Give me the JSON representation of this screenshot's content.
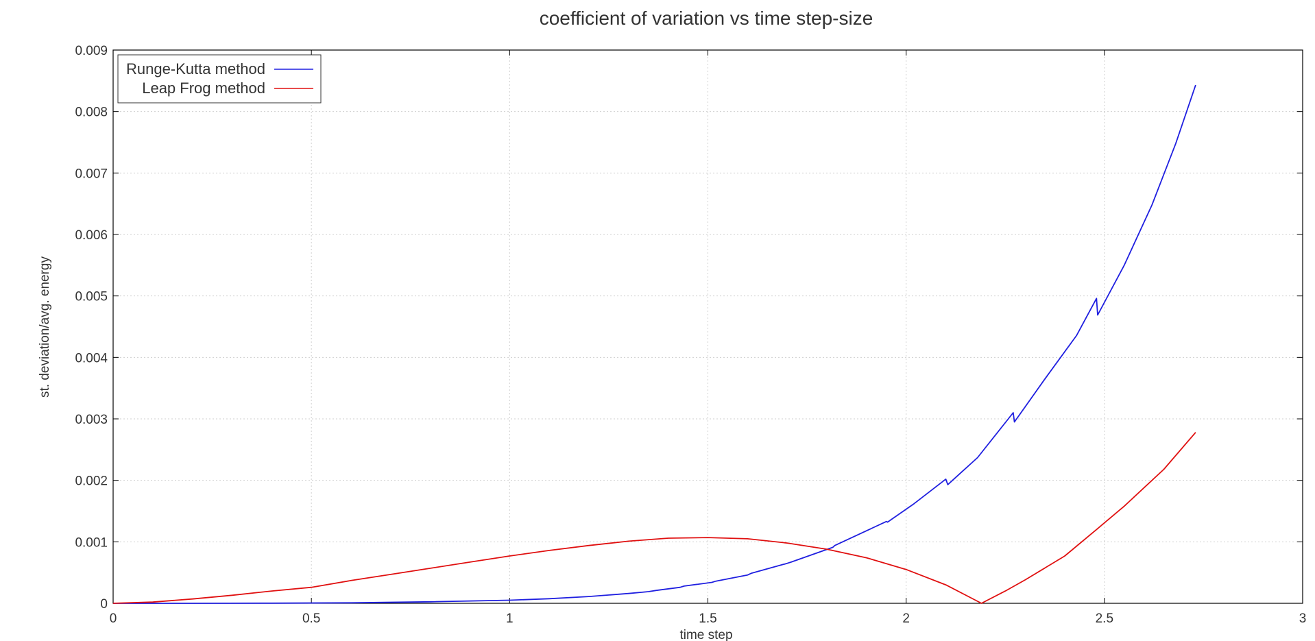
{
  "chart_data": {
    "type": "line",
    "title": "coefficient of variation vs time step-size",
    "xlabel": "time step",
    "ylabel": "st. deviation/avg. energy",
    "xlim": [
      0,
      3
    ],
    "ylim": [
      0,
      0.009
    ],
    "x_ticks": [
      "0",
      "0.5",
      "1",
      "1.5",
      "2",
      "2.5",
      "3"
    ],
    "y_ticks": [
      "0",
      "0.001",
      "0.002",
      "0.003",
      "0.004",
      "0.005",
      "0.006",
      "0.007",
      "0.008",
      "0.009"
    ],
    "grid": true,
    "legend_position": "top-left",
    "series": [
      {
        "name": "Runge-Kutta method",
        "color": "#1f1fe0",
        "points": [
          [
            0.0,
            0.0
          ],
          [
            0.2,
            0.0
          ],
          [
            0.4,
            2e-06
          ],
          [
            0.6,
            8e-06
          ],
          [
            0.8,
            2.5e-05
          ],
          [
            1.0,
            5e-05
          ],
          [
            1.1,
            7.5e-05
          ],
          [
            1.2,
            0.00011
          ],
          [
            1.3,
            0.00016
          ],
          [
            1.35,
            0.00019
          ],
          [
            1.37,
            0.00021
          ],
          [
            1.43,
            0.00026
          ],
          [
            1.44,
            0.00028
          ],
          [
            1.51,
            0.00034
          ],
          [
            1.52,
            0.00036
          ],
          [
            1.6,
            0.00046
          ],
          [
            1.61,
            0.00049
          ],
          [
            1.7,
            0.00065
          ],
          [
            1.71,
            0.00067
          ],
          [
            1.815,
            0.00091
          ],
          [
            1.82,
            0.00094
          ],
          [
            1.95,
            0.00133
          ],
          [
            1.953,
            0.00132
          ],
          [
            2.02,
            0.00162
          ],
          [
            2.1,
            0.00202
          ],
          [
            2.105,
            0.00193
          ],
          [
            2.18,
            0.00237
          ],
          [
            2.27,
            0.0031
          ],
          [
            2.273,
            0.00295
          ],
          [
            2.35,
            0.00365
          ],
          [
            2.43,
            0.00436
          ],
          [
            2.48,
            0.00496
          ],
          [
            2.483,
            0.00469
          ],
          [
            2.55,
            0.0055
          ],
          [
            2.62,
            0.00648
          ],
          [
            2.68,
            0.00748
          ],
          [
            2.73,
            0.00843
          ]
        ]
      },
      {
        "name": "Leap Frog method",
        "color": "#e01010",
        "points": [
          [
            0.0,
            0.0
          ],
          [
            0.1,
            2e-05
          ],
          [
            0.2,
            7e-05
          ],
          [
            0.3,
            0.00013
          ],
          [
            0.4,
            0.0002
          ],
          [
            0.5,
            0.00026
          ],
          [
            0.6,
            0.00037
          ],
          [
            0.7,
            0.00047
          ],
          [
            0.8,
            0.00057
          ],
          [
            0.9,
            0.00067
          ],
          [
            1.0,
            0.00077
          ],
          [
            1.1,
            0.00086
          ],
          [
            1.2,
            0.00094
          ],
          [
            1.3,
            0.00101
          ],
          [
            1.4,
            0.00106
          ],
          [
            1.5,
            0.00107
          ],
          [
            1.6,
            0.00105
          ],
          [
            1.7,
            0.00098
          ],
          [
            1.8,
            0.00088
          ],
          [
            1.9,
            0.00074
          ],
          [
            2.0,
            0.00055
          ],
          [
            2.1,
            0.0003
          ],
          [
            2.19,
            0.0
          ],
          [
            2.25,
            0.0002
          ],
          [
            2.3,
            0.00038
          ],
          [
            2.4,
            0.00077
          ],
          [
            2.48,
            0.0012
          ],
          [
            2.55,
            0.00158
          ],
          [
            2.65,
            0.00218
          ],
          [
            2.73,
            0.00278
          ]
        ]
      }
    ]
  }
}
